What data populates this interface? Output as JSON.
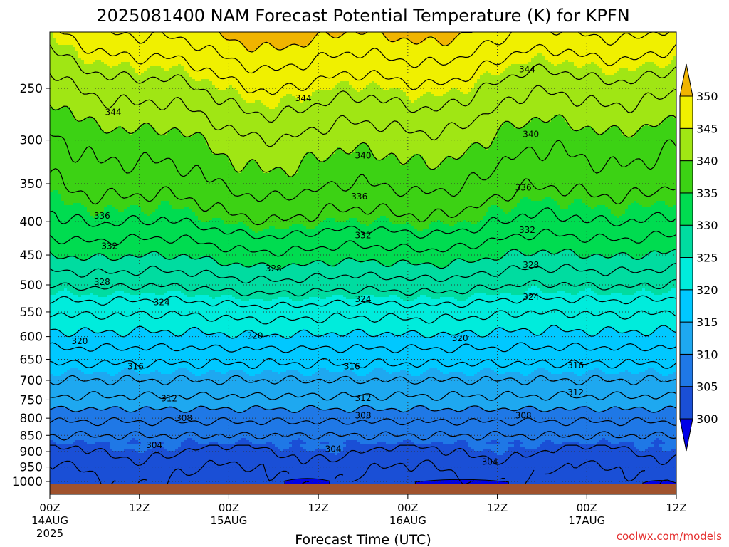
{
  "title": "2025081400 NAM Forecast Potential Temperature (K) for KPFN",
  "xlabel": "Forecast Time (UTC)",
  "credit": "coolwx.com/models",
  "colors": {
    "ground": "#a0522d",
    "contour_line": "#000000",
    "grid": "#333333"
  },
  "chart_data": {
    "type": "heatmap",
    "x_ticks": [
      {
        "label": "00Z",
        "sub": "14AUG",
        "sub2": "2025",
        "hour": 0
      },
      {
        "label": "12Z",
        "sub": "",
        "sub2": "",
        "hour": 12
      },
      {
        "label": "00Z",
        "sub": "15AUG",
        "sub2": "",
        "hour": 24
      },
      {
        "label": "12Z",
        "sub": "",
        "sub2": "",
        "hour": 36
      },
      {
        "label": "00Z",
        "sub": "16AUG",
        "sub2": "",
        "hour": 48
      },
      {
        "label": "12Z",
        "sub": "",
        "sub2": "",
        "hour": 60
      },
      {
        "label": "00Z",
        "sub": "17AUG",
        "sub2": "",
        "hour": 72
      },
      {
        "label": "12Z",
        "sub": "",
        "sub2": "",
        "hour": 84
      }
    ],
    "xlim_hours": [
      0,
      84
    ],
    "y_ticks": [
      250,
      300,
      350,
      400,
      450,
      500,
      550,
      600,
      650,
      700,
      750,
      800,
      850,
      900,
      950,
      1000
    ],
    "ylim_hpa": [
      200,
      1020
    ],
    "y_scale": "log",
    "colorbar": {
      "levels": [
        300,
        305,
        310,
        315,
        320,
        325,
        330,
        335,
        340,
        345,
        350
      ],
      "colors": [
        "#0000e6",
        "#1a4fd6",
        "#1f78e6",
        "#1ea8f0",
        "#00c8ff",
        "#00ecdc",
        "#00dca0",
        "#00dc50",
        "#3cd214",
        "#a0e614",
        "#f0f000",
        "#f0b400"
      ],
      "extend": "both"
    },
    "contour_interval": 2,
    "theta_profile": [
      {
        "p": 1000,
        "theta": 301.5
      },
      {
        "p": 950,
        "theta": 302.5
      },
      {
        "p": 900,
        "theta": 304
      },
      {
        "p": 850,
        "theta": 306
      },
      {
        "p": 800,
        "theta": 308.5
      },
      {
        "p": 750,
        "theta": 311.5
      },
      {
        "p": 700,
        "theta": 314
      },
      {
        "p": 650,
        "theta": 316.5
      },
      {
        "p": 600,
        "theta": 319.5
      },
      {
        "p": 550,
        "theta": 322.5
      },
      {
        "p": 500,
        "theta": 326.5
      },
      {
        "p": 450,
        "theta": 330.5
      },
      {
        "p": 400,
        "theta": 334.5
      },
      {
        "p": 350,
        "theta": 337.5
      },
      {
        "p": 300,
        "theta": 340
      },
      {
        "p": 250,
        "theta": 344
      },
      {
        "p": 200,
        "theta": 350
      }
    ],
    "contour_labels": [
      {
        "text": "344",
        "hour": 8.5,
        "p": 272
      },
      {
        "text": "344",
        "hour": 34,
        "p": 259
      },
      {
        "text": "344",
        "hour": 64,
        "p": 234
      },
      {
        "text": "340",
        "hour": 42,
        "p": 317
      },
      {
        "text": "340",
        "hour": 64.5,
        "p": 294
      },
      {
        "text": "336",
        "hour": 7,
        "p": 392
      },
      {
        "text": "336",
        "hour": 41.5,
        "p": 366
      },
      {
        "text": "336",
        "hour": 63.5,
        "p": 355
      },
      {
        "text": "332",
        "hour": 8,
        "p": 436
      },
      {
        "text": "332",
        "hour": 42,
        "p": 420
      },
      {
        "text": "332",
        "hour": 64,
        "p": 412
      },
      {
        "text": "328",
        "hour": 7,
        "p": 495
      },
      {
        "text": "328",
        "hour": 30,
        "p": 472
      },
      {
        "text": "328",
        "hour": 64.5,
        "p": 466
      },
      {
        "text": "324",
        "hour": 15,
        "p": 532
      },
      {
        "text": "324",
        "hour": 42,
        "p": 526
      },
      {
        "text": "324",
        "hour": 64.5,
        "p": 522
      },
      {
        "text": "320",
        "hour": 4,
        "p": 610
      },
      {
        "text": "320",
        "hour": 27.5,
        "p": 598
      },
      {
        "text": "320",
        "hour": 55,
        "p": 604
      },
      {
        "text": "316",
        "hour": 11.5,
        "p": 667
      },
      {
        "text": "316",
        "hour": 40.5,
        "p": 667
      },
      {
        "text": "316",
        "hour": 70.5,
        "p": 664
      },
      {
        "text": "312",
        "hour": 16,
        "p": 746
      },
      {
        "text": "312",
        "hour": 42,
        "p": 745
      },
      {
        "text": "312",
        "hour": 70.5,
        "p": 731
      },
      {
        "text": "308",
        "hour": 18,
        "p": 800
      },
      {
        "text": "308",
        "hour": 42,
        "p": 793
      },
      {
        "text": "308",
        "hour": 63.5,
        "p": 793
      },
      {
        "text": "304",
        "hour": 14,
        "p": 880
      },
      {
        "text": "304",
        "hour": 38,
        "p": 892
      },
      {
        "text": "304",
        "hour": 59,
        "p": 933
      }
    ],
    "surface_cold_pockets": [
      {
        "hour_start": 31.5,
        "hour_end": 37.5,
        "p_top": 988
      },
      {
        "hour_start": 49,
        "hour_end": 61.5,
        "p_top": 992
      },
      {
        "hour_start": 79.5,
        "hour_end": 84,
        "p_top": 995
      }
    ]
  }
}
